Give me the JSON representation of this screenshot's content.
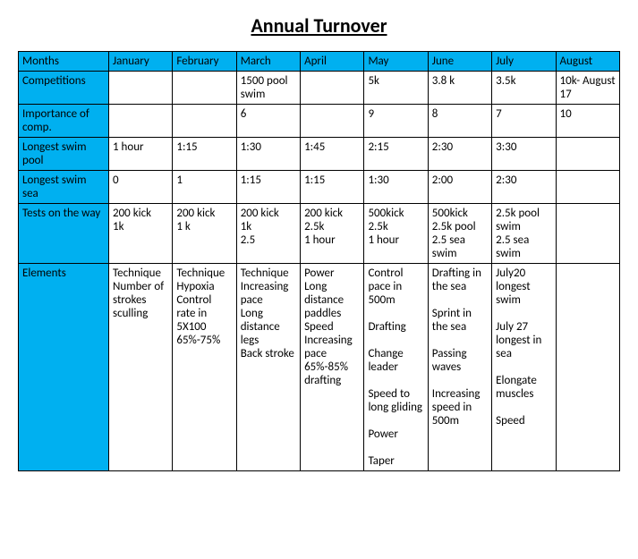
{
  "title": "Annual Turnover",
  "header_bg": "#00b0f0",
  "border_color": "#000000",
  "font_family": "Calibri",
  "months_label": "Months",
  "months": [
    "January",
    "February",
    "March",
    "April",
    "May",
    "June",
    "July",
    "August"
  ],
  "rows": [
    {
      "label": "Competitions",
      "cells": [
        "",
        "",
        "1500 pool swim",
        "",
        "5k",
        "3.8 k",
        "3.5k",
        "10k- August 17"
      ]
    },
    {
      "label": "Importance of comp.",
      "cells": [
        "",
        "",
        "6",
        "",
        "9",
        "8",
        "7",
        "10"
      ]
    },
    {
      "label": "Longest swim pool",
      "cells": [
        "1 hour",
        "1:15",
        "1:30",
        "1:45",
        "2:15",
        "2:30",
        "3:30",
        ""
      ]
    },
    {
      "label": "Longest swim sea",
      "cells": [
        "0",
        "1",
        "1:15",
        "1:15",
        "1:30",
        "2:00",
        "2:30",
        ""
      ]
    },
    {
      "label": "Tests on the way",
      "cells": [
        "200 kick\n1k",
        "200 kick\n1 k",
        "200 kick\n1k\n2.5",
        "200 kick\n2.5k\n1 hour",
        "500kick\n2.5k\n1 hour",
        "500kick\n2.5k pool\n2.5 sea swim",
        "2.5k pool swim\n2.5 sea swim",
        ""
      ]
    },
    {
      "label": "Elements",
      "cells": [
        "Technique\nNumber of strokes sculling",
        "Technique\nHypoxia\nControl rate in 5X100 65%-75%",
        "Technique\nIncreasing pace\nLong distance legs\nBack stroke",
        "Power\nLong distance paddles\nSpeed\nIncreasing pace 65%-85%\ndrafting",
        "Control pace in 500m\n\nDrafting\n\nChange leader\n\nSpeed to long gliding\n\nPower\n\nTaper",
        "Drafting in the sea\n\nSprint in the sea\n\nPassing waves\n\nIncreasing speed in 500m",
        "July20 longest swim\n\nJuly 27 longest in sea\n\nElongate muscles\n\nSpeed",
        ""
      ]
    }
  ]
}
